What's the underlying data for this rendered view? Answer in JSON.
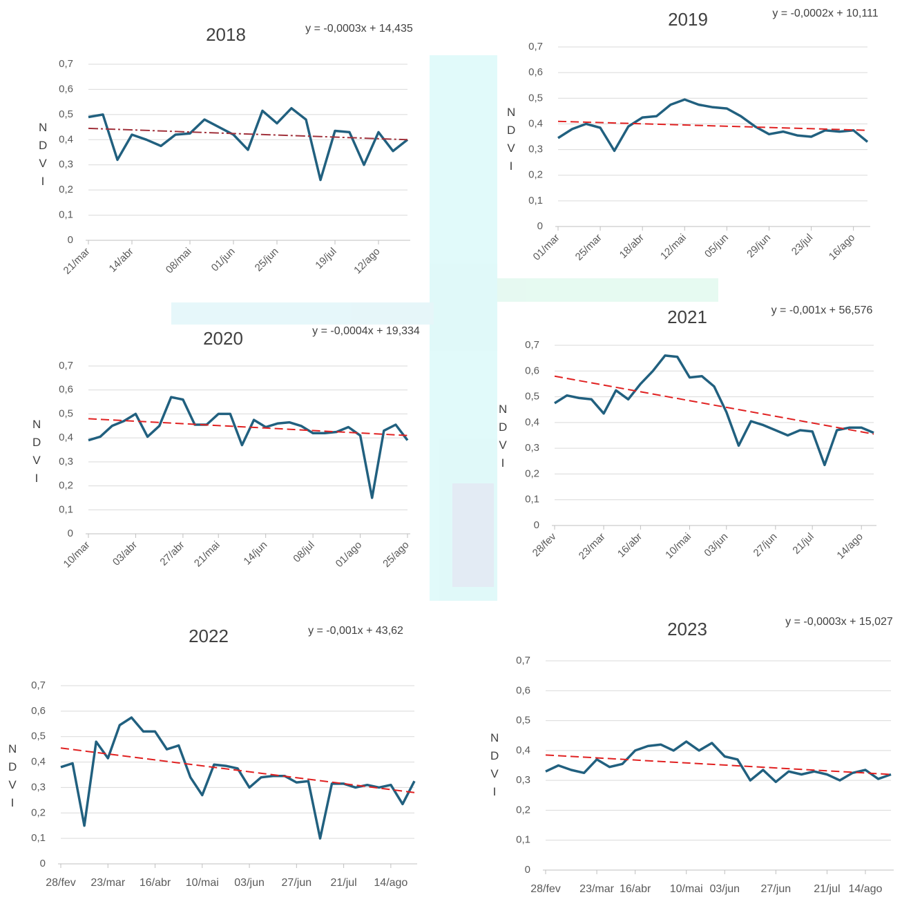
{
  "chart_data": [
    {
      "type": "line",
      "title": "2018",
      "annotation": "y = -0,0003x + 14,435",
      "ylabel": "NDVI",
      "color": "#21607f",
      "categories": [
        "21/mar",
        null,
        null,
        "14/abr",
        null,
        null,
        null,
        "08/mai",
        null,
        null,
        "01/jun",
        null,
        null,
        "25/jun",
        null,
        null,
        null,
        "19/jul",
        null,
        null,
        "12/ago",
        null,
        null
      ],
      "values": [
        0.49,
        0.5,
        0.32,
        0.42,
        0.4,
        0.375,
        0.42,
        0.425,
        0.48,
        0.45,
        0.42,
        0.36,
        0.515,
        0.465,
        0.525,
        0.48,
        0.24,
        0.435,
        0.43,
        0.3,
        0.43,
        0.355,
        0.4
      ],
      "trendline": {
        "values": [
          0.445,
          0.4
        ],
        "color": "#a0303a"
      },
      "ylim": [
        0,
        0.7
      ],
      "yticks": [
        0,
        {
          "value": 0.1,
          "label": "0,1"
        },
        {
          "value": 0.2,
          "label": "0,2"
        },
        {
          "value": 0.3,
          "label": "0,3"
        },
        {
          "value": 0.4,
          "label": "0,4"
        },
        {
          "value": 0.5,
          "label": "0,5"
        },
        {
          "value": 0.6,
          "label": "0,6"
        },
        {
          "value": 0.7,
          "label": "0,7"
        }
      ],
      "grid": true
    },
    {
      "type": "line",
      "title": "2019",
      "annotation": "y = -0,0002x + 10,111",
      "ylabel": "NDVI",
      "color": "#21607f",
      "categories": [
        "01/mar",
        null,
        null,
        "25/mar",
        null,
        null,
        "18/abr",
        null,
        null,
        "12/mai",
        null,
        null,
        "05/jun",
        null,
        null,
        "29/jun",
        null,
        null,
        "23/jul",
        null,
        null,
        "16/ago",
        null
      ],
      "values": [
        0.345,
        0.38,
        0.4,
        0.385,
        0.295,
        0.39,
        0.425,
        0.43,
        0.475,
        0.495,
        0.475,
        0.465,
        0.46,
        0.43,
        0.39,
        0.36,
        0.37,
        0.355,
        0.35,
        0.375,
        0.37,
        0.375,
        0.33
      ],
      "trendline": {
        "values": [
          0.41,
          0.375
        ],
        "color": "#e02020"
      },
      "ylim": [
        0,
        0.7
      ],
      "yticks": [
        0,
        {
          "value": 0.1,
          "label": "0,1"
        },
        {
          "value": 0.2,
          "label": "0,2"
        },
        {
          "value": 0.3,
          "label": "0,3"
        },
        {
          "value": 0.4,
          "label": "0,4"
        },
        {
          "value": 0.5,
          "label": "0,5"
        },
        {
          "value": 0.6,
          "label": "0,6"
        },
        {
          "value": 0.7,
          "label": "0,7"
        }
      ],
      "grid": true
    },
    {
      "type": "line",
      "title": "2020",
      "annotation": "y = -0,0004x + 19,334",
      "ylabel": "NDVI",
      "color": "#21607f",
      "categories": [
        "10/mar",
        null,
        null,
        null,
        "03/abr",
        null,
        null,
        null,
        "27/abr",
        null,
        null,
        "21/mai",
        null,
        null,
        null,
        "14/jun",
        null,
        null,
        null,
        "08/jul",
        null,
        null,
        null,
        "01/ago",
        null,
        null,
        null,
        "25/ago"
      ],
      "values": [
        0.39,
        0.405,
        0.45,
        0.47,
        0.5,
        0.405,
        0.45,
        0.57,
        0.56,
        0.455,
        0.455,
        0.5,
        0.5,
        0.37,
        0.475,
        0.445,
        0.46,
        0.465,
        0.45,
        0.42,
        0.42,
        0.425,
        0.445,
        0.41,
        0.15,
        0.43,
        0.455,
        0.39
      ],
      "trendline": {
        "values": [
          0.48,
          0.41
        ],
        "color": "#e02020"
      },
      "ylim": [
        0,
        0.7
      ],
      "yticks": [
        0,
        {
          "value": 0.1,
          "label": "0,1"
        },
        {
          "value": 0.2,
          "label": "0,2"
        },
        {
          "value": 0.3,
          "label": "0,3"
        },
        {
          "value": 0.4,
          "label": "0,4"
        },
        {
          "value": 0.5,
          "label": "0,5"
        },
        {
          "value": 0.6,
          "label": "0,6"
        },
        {
          "value": 0.7,
          "label": "0,7"
        }
      ],
      "grid": true
    },
    {
      "type": "line",
      "title": "2021",
      "annotation": "y = -0,001x + 56,576",
      "ylabel": "NDVI",
      "color": "#21607f",
      "categories": [
        "28/fev",
        null,
        null,
        null,
        "23/mar",
        null,
        null,
        "16/abr",
        null,
        null,
        null,
        "10/mai",
        null,
        null,
        "03/jun",
        null,
        null,
        null,
        "27/jun",
        null,
        null,
        "21/jul",
        null,
        null,
        null,
        "14/ago",
        null
      ],
      "values": [
        0.475,
        0.505,
        0.495,
        0.49,
        0.435,
        0.525,
        0.49,
        0.55,
        0.6,
        0.66,
        0.655,
        0.575,
        0.58,
        0.54,
        0.44,
        0.31,
        0.405,
        0.39,
        0.37,
        0.35,
        0.37,
        0.365,
        0.235,
        0.37,
        0.38,
        0.38,
        0.36
      ],
      "trendline": {
        "values": [
          0.58,
          0.355
        ],
        "color": "#e02020"
      },
      "ylim": [
        0,
        0.7
      ],
      "yticks": [
        0,
        {
          "value": 0.1,
          "label": "0,1"
        },
        {
          "value": 0.2,
          "label": "0,2"
        },
        {
          "value": 0.3,
          "label": "0,3"
        },
        {
          "value": 0.4,
          "label": "0,4"
        },
        {
          "value": 0.5,
          "label": "0,5"
        },
        {
          "value": 0.6,
          "label": "0,6"
        },
        {
          "value": 0.7,
          "label": "0,7"
        }
      ],
      "grid": true
    },
    {
      "type": "line",
      "title": "2022",
      "annotation": "y = -0,001x + 43,62",
      "ylabel": "NDVI",
      "color": "#21607f",
      "categories": [
        "28/fev",
        null,
        null,
        null,
        "23/mar",
        null,
        null,
        null,
        "16/abr",
        null,
        null,
        null,
        "10/mai",
        null,
        null,
        null,
        "03/jun",
        null,
        null,
        null,
        "27/jun",
        null,
        null,
        null,
        "21/jul",
        null,
        null,
        null,
        "14/ago",
        null,
        null
      ],
      "values": [
        0.38,
        0.395,
        0.15,
        0.48,
        0.415,
        0.545,
        0.575,
        0.52,
        0.52,
        0.45,
        0.465,
        0.34,
        0.27,
        0.39,
        0.385,
        0.375,
        0.3,
        0.34,
        0.345,
        0.345,
        0.32,
        0.325,
        0.1,
        0.315,
        0.315,
        0.3,
        0.31,
        0.3,
        0.31,
        0.235,
        0.325
      ],
      "trendline": {
        "values": [
          0.455,
          0.28
        ],
        "color": "#e02020"
      },
      "ylim": [
        0,
        0.7
      ],
      "yticks": [
        0,
        {
          "value": 0.1,
          "label": "0,1"
        },
        {
          "value": 0.2,
          "label": "0,2"
        },
        {
          "value": 0.3,
          "label": "0,3"
        },
        {
          "value": 0.4,
          "label": "0,4"
        },
        {
          "value": 0.5,
          "label": "0,5"
        },
        {
          "value": 0.6,
          "label": "0,6"
        },
        {
          "value": 0.7,
          "label": "0,7"
        }
      ],
      "grid": true
    },
    {
      "type": "line",
      "title": "2023",
      "annotation": "y = -0,0003x + 15,027",
      "ylabel": "NDVI",
      "color": "#21607f",
      "categories": [
        "28/fev",
        null,
        null,
        null,
        "23/mar",
        null,
        null,
        "16/abr",
        null,
        null,
        null,
        "10/mai",
        null,
        null,
        "03/jun",
        null,
        null,
        null,
        "27/jun",
        null,
        null,
        null,
        "21/jul",
        null,
        null,
        "14/ago",
        null,
        null
      ],
      "values": [
        0.33,
        0.35,
        0.335,
        0.325,
        0.37,
        0.345,
        0.355,
        0.4,
        0.415,
        0.42,
        0.4,
        0.43,
        0.4,
        0.425,
        0.38,
        0.37,
        0.3,
        0.335,
        0.295,
        0.33,
        0.32,
        0.33,
        0.32,
        0.3,
        0.325,
        0.335,
        0.305,
        0.32
      ],
      "trendline": {
        "values": [
          0.385,
          0.32
        ],
        "color": "#e02020"
      },
      "ylim": [
        0,
        0.7
      ],
      "yticks": [
        0,
        {
          "value": 0.1,
          "label": "0,1"
        },
        {
          "value": 0.2,
          "label": "0,2"
        },
        {
          "value": 0.3,
          "label": "0,3"
        },
        {
          "value": 0.4,
          "label": "0,4"
        },
        {
          "value": 0.5,
          "label": "0,5"
        },
        {
          "value": 0.6,
          "label": "0,6"
        },
        {
          "value": 0.7,
          "label": "0,7"
        }
      ],
      "grid": true
    }
  ]
}
